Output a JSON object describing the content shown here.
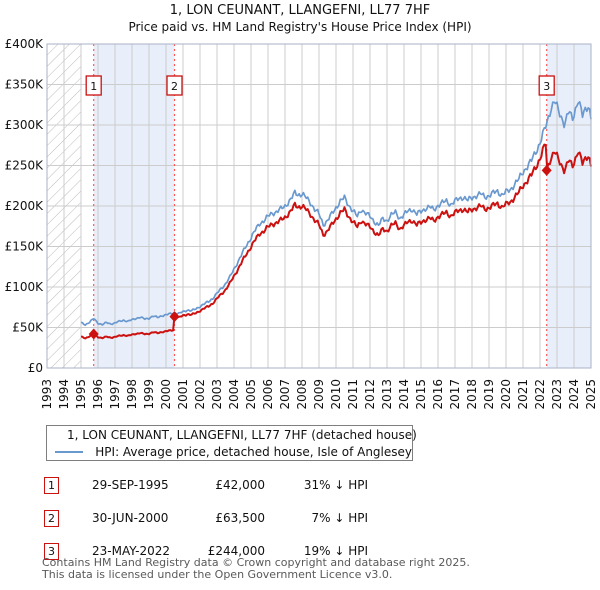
{
  "header": {
    "title": "1, LON CEUNANT, LLANGEFNI, LL77 7HF",
    "subtitle": "Price paid vs. HM Land Registry's House Price Index (HPI)"
  },
  "chart_data": {
    "type": "line",
    "xlim": [
      1993,
      2025
    ],
    "ylim": [
      0,
      400000
    ],
    "x_tick_labels": [
      "1993",
      "1994",
      "1995",
      "1996",
      "1997",
      "1998",
      "1999",
      "2000",
      "2001",
      "2002",
      "2003",
      "2004",
      "2005",
      "2006",
      "2007",
      "2008",
      "2009",
      "2010",
      "2011",
      "2012",
      "2013",
      "2014",
      "2015",
      "2016",
      "2017",
      "2018",
      "2019",
      "2020",
      "2021",
      "2022",
      "2023",
      "2024",
      "2025"
    ],
    "y_tick_labels": [
      "£0",
      "£50K",
      "£100K",
      "£150K",
      "£200K",
      "£250K",
      "£300K",
      "£350K",
      "£400K"
    ],
    "grid": true,
    "no_data_hatch_region": [
      1993,
      1995
    ],
    "highlight_regions": [
      [
        1995.747,
        2000.5
      ],
      [
        2022.392,
        2025.0
      ]
    ],
    "colors": {
      "price_line": "#cc1111",
      "hpi_line": "#6a99cf",
      "sale_dotted_line": "#ff5555",
      "highlight_fill": "#e9effa",
      "hatch_line": "#bbbbbb",
      "grid_line": "#cccccc",
      "plot_border": "#a9b2c4",
      "sale_box_border": "#cc1111"
    },
    "series": [
      {
        "name": "HPI: Average price, detached house, Isle of Anglesey",
        "role": "hpi",
        "color": "#6a99cf",
        "anchors_year_gbp_thousands": [
          [
            1995.0,
            56
          ],
          [
            1995.25,
            53.5
          ],
          [
            1995.5,
            56.5
          ],
          [
            1995.75,
            61
          ],
          [
            1996.0,
            55.5
          ],
          [
            1996.25,
            53.5
          ],
          [
            1996.5,
            56
          ],
          [
            1996.75,
            54.5
          ],
          [
            1997.0,
            55.5
          ],
          [
            1997.25,
            57.5
          ],
          [
            1997.5,
            59
          ],
          [
            1997.75,
            57.5
          ],
          [
            1998.0,
            59.5
          ],
          [
            1998.25,
            61.5
          ],
          [
            1998.5,
            62.5
          ],
          [
            1998.75,
            60.5
          ],
          [
            1999.0,
            61.5
          ],
          [
            1999.25,
            64
          ],
          [
            1999.5,
            62.5
          ],
          [
            1999.75,
            64.5
          ],
          [
            2000.0,
            65.5
          ],
          [
            2000.25,
            67
          ],
          [
            2000.5,
            68.3
          ],
          [
            2000.75,
            67
          ],
          [
            2001.0,
            69.5
          ],
          [
            2001.25,
            71.5
          ],
          [
            2001.5,
            70.5
          ],
          [
            2001.75,
            73
          ],
          [
            2002.0,
            76
          ],
          [
            2002.25,
            79
          ],
          [
            2002.5,
            82
          ],
          [
            2002.75,
            86
          ],
          [
            2003.0,
            92
          ],
          [
            2003.25,
            98
          ],
          [
            2003.5,
            104
          ],
          [
            2003.75,
            112
          ],
          [
            2004.0,
            122
          ],
          [
            2004.25,
            132
          ],
          [
            2004.5,
            142
          ],
          [
            2004.75,
            152
          ],
          [
            2005.0,
            161
          ],
          [
            2005.25,
            170
          ],
          [
            2005.5,
            178
          ],
          [
            2005.75,
            182
          ],
          [
            2006.0,
            187
          ],
          [
            2006.25,
            191
          ],
          [
            2006.5,
            193
          ],
          [
            2006.75,
            196
          ],
          [
            2007.0,
            200
          ],
          [
            2007.25,
            206
          ],
          [
            2007.5,
            213
          ],
          [
            2007.6,
            217
          ],
          [
            2007.75,
            214
          ],
          [
            2008.0,
            215
          ],
          [
            2008.25,
            210
          ],
          [
            2008.5,
            204
          ],
          [
            2008.75,
            196
          ],
          [
            2009.0,
            190
          ],
          [
            2009.25,
            177
          ],
          [
            2009.5,
            182
          ],
          [
            2009.75,
            190
          ],
          [
            2010.0,
            198
          ],
          [
            2010.25,
            206
          ],
          [
            2010.5,
            210
          ],
          [
            2010.75,
            201
          ],
          [
            2011.0,
            194
          ],
          [
            2011.25,
            187
          ],
          [
            2011.5,
            196
          ],
          [
            2011.75,
            191
          ],
          [
            2012.0,
            187
          ],
          [
            2012.25,
            181
          ],
          [
            2012.5,
            176
          ],
          [
            2012.75,
            184
          ],
          [
            2013.0,
            182
          ],
          [
            2013.25,
            189
          ],
          [
            2013.5,
            192
          ],
          [
            2013.75,
            185
          ],
          [
            2014.0,
            189
          ],
          [
            2014.25,
            194
          ],
          [
            2014.5,
            196
          ],
          [
            2014.75,
            190
          ],
          [
            2015.0,
            193
          ],
          [
            2015.25,
            197
          ],
          [
            2015.5,
            199
          ],
          [
            2015.75,
            195
          ],
          [
            2016.0,
            201
          ],
          [
            2016.25,
            204
          ],
          [
            2016.5,
            206
          ],
          [
            2016.75,
            202
          ],
          [
            2017.0,
            206
          ],
          [
            2017.25,
            209
          ],
          [
            2017.5,
            211
          ],
          [
            2017.75,
            207
          ],
          [
            2018.0,
            210
          ],
          [
            2018.25,
            213
          ],
          [
            2018.5,
            215
          ],
          [
            2018.75,
            211
          ],
          [
            2019.0,
            213
          ],
          [
            2019.25,
            216
          ],
          [
            2019.5,
            218
          ],
          [
            2019.75,
            214
          ],
          [
            2020.0,
            217
          ],
          [
            2020.25,
            220
          ],
          [
            2020.5,
            227
          ],
          [
            2020.75,
            233
          ],
          [
            2021.0,
            242
          ],
          [
            2021.25,
            249
          ],
          [
            2021.5,
            256
          ],
          [
            2021.75,
            267
          ],
          [
            2022.0,
            278
          ],
          [
            2022.2,
            290
          ],
          [
            2022.4,
            302
          ],
          [
            2022.6,
            318
          ],
          [
            2022.85,
            330
          ],
          [
            2023.0,
            322
          ],
          [
            2023.2,
            312
          ],
          [
            2023.45,
            301
          ],
          [
            2023.7,
            317
          ],
          [
            2023.9,
            307
          ],
          [
            2024.1,
            321
          ],
          [
            2024.25,
            331
          ],
          [
            2024.5,
            311
          ],
          [
            2024.7,
            321
          ],
          [
            2024.85,
            325
          ],
          [
            2025.0,
            309
          ]
        ]
      },
      {
        "name": "1, LON CEUNANT, LLANGEFNI, LL77 7HF (detached house)",
        "role": "price",
        "color": "#cc1111",
        "derived_from": "hpi",
        "ratio_segments": [
          {
            "until": 2000.5,
            "ratio": 0.69
          },
          {
            "until": 2022.392,
            "ratio": 0.93
          },
          {
            "until": 2025.1,
            "ratio": 0.81
          }
        ]
      }
    ],
    "sales": [
      {
        "num": "1",
        "year": 1995.747,
        "price": 42000
      },
      {
        "num": "2",
        "year": 2000.5,
        "price": 63500
      },
      {
        "num": "3",
        "year": 2022.392,
        "price": 244000
      }
    ],
    "noise_pct": 1.2
  },
  "legend": {
    "entries": [
      {
        "label": "1, LON CEUNANT, LLANGEFNI, LL77 7HF (detached house)",
        "color": "#cc1111"
      },
      {
        "label": "HPI: Average price, detached house, Isle of Anglesey",
        "color": "#6a99cf"
      }
    ]
  },
  "sales_table": {
    "rows": [
      {
        "num": "1",
        "date": "29-SEP-1995",
        "price": "£42,000",
        "vs_hpi": "31% ↓ HPI"
      },
      {
        "num": "2",
        "date": "30-JUN-2000",
        "price": "£63,500",
        "vs_hpi": "7% ↓ HPI"
      },
      {
        "num": "3",
        "date": "23-MAY-2022",
        "price": "£244,000",
        "vs_hpi": "19% ↓ HPI"
      }
    ]
  },
  "footer": {
    "line1": "Contains HM Land Registry data © Crown copyright and database right 2025.",
    "line2": "This data is licensed under the Open Government Licence v3.0."
  }
}
